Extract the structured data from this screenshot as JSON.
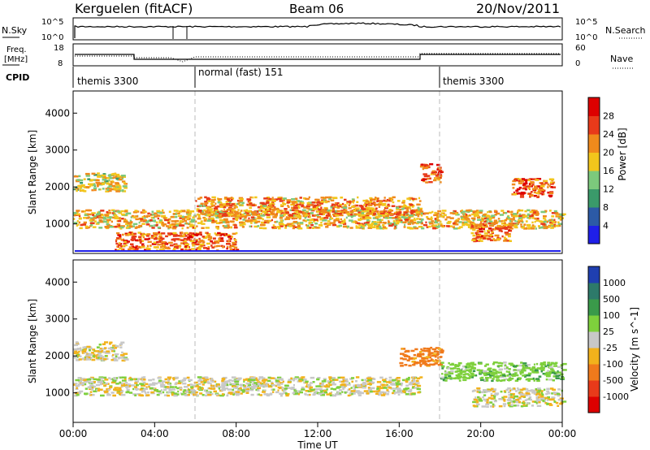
{
  "header": {
    "station": "Kerguelen (fitACF)",
    "beam": "Beam 06",
    "date": "20/Nov/2011"
  },
  "nsky_panel": {
    "left_label": "N.Sky",
    "right_label": "N.Search",
    "left_ticks": [
      "10^5",
      "10^0"
    ],
    "right_ticks": [
      "10^5",
      "10^0"
    ]
  },
  "freq_panel": {
    "left_label_line1": "Freq.",
    "left_label_line2": "[MHz]",
    "right_label": "Nave",
    "left_ticks": [
      "18",
      "8"
    ],
    "right_ticks": [
      "60",
      "0"
    ]
  },
  "cpid": {
    "label": "CPID",
    "segments": [
      {
        "text": "themis 3300",
        "start_hour": 0
      },
      {
        "text": "normal (fast) 151",
        "start_hour": 6
      },
      {
        "text": "themis 3300",
        "start_hour": 18
      }
    ]
  },
  "time_axis": {
    "label": "Time UT",
    "ticks": [
      "00:00",
      "04:00",
      "08:00",
      "12:00",
      "16:00",
      "20:00",
      "00:00"
    ]
  },
  "chart_data": [
    {
      "type": "heatmap",
      "title": "Power",
      "ylabel": "Slant Range [km]",
      "xlabel": "Time UT",
      "xlim": [
        0,
        24
      ],
      "ylim": [
        200,
        4600
      ],
      "yticks": [
        "1000",
        "2000",
        "3000",
        "4000"
      ],
      "colorbar": {
        "label": "Power [dB]",
        "ticks": [
          "4",
          "8",
          "12",
          "16",
          "20",
          "24",
          "28"
        ],
        "colors": [
          "#1f1fe8",
          "#2c5aa6",
          "#3a9a6a",
          "#7cc97c",
          "#f2c61c",
          "#f08a1c",
          "#e83a1a",
          "#dd0000"
        ]
      },
      "scatter_echo_bands": [
        {
          "t0": 0.0,
          "t1": 2.5,
          "range": 2150,
          "power_db": 18
        },
        {
          "t0": 0.0,
          "t1": 24.0,
          "range": 1150,
          "power_db": 20
        },
        {
          "t0": 6.0,
          "t1": 17.0,
          "range": 1500,
          "power_db": 22
        },
        {
          "t0": 17.0,
          "t1": 18.0,
          "range": 2400,
          "power_db": 26
        },
        {
          "t0": 21.5,
          "t1": 23.5,
          "range": 2000,
          "power_db": 26
        },
        {
          "t0": 19.5,
          "t1": 21.5,
          "range": 800,
          "power_db": 24
        },
        {
          "t0": 2.0,
          "t1": 8.0,
          "range": 550,
          "power_db": 25
        }
      ]
    },
    {
      "type": "heatmap",
      "title": "Velocity",
      "ylabel": "Slant Range [km]",
      "xlabel": "Time UT",
      "xlim": [
        0,
        24
      ],
      "ylim": [
        200,
        4600
      ],
      "yticks": [
        "1000",
        "2000",
        "3000",
        "4000"
      ],
      "colorbar": {
        "label": "Velocity [m s^-1]",
        "ticks": [
          "1000",
          "500",
          "100",
          "25",
          "-25",
          "-100",
          "-500",
          "-1000"
        ],
        "colors": [
          "#1f3fb0",
          "#2d7a6a",
          "#3a9a4a",
          "#7ed03c",
          "#c8c8c8",
          "#f2b21c",
          "#f07a1c",
          "#e83a1a",
          "#dd0000"
        ]
      },
      "scatter_echo_bands": [
        {
          "t0": 0.0,
          "t1": 2.5,
          "range": 2150,
          "velocity": 0
        },
        {
          "t0": 0.0,
          "t1": 17.0,
          "range": 1200,
          "velocity": 0
        },
        {
          "t0": 16.0,
          "t1": 18.0,
          "range": 2000,
          "velocity": -300
        },
        {
          "t0": 18.0,
          "t1": 24.0,
          "range": 1600,
          "velocity": 200
        },
        {
          "t0": 19.5,
          "t1": 24.0,
          "range": 900,
          "velocity": 0
        }
      ]
    }
  ]
}
